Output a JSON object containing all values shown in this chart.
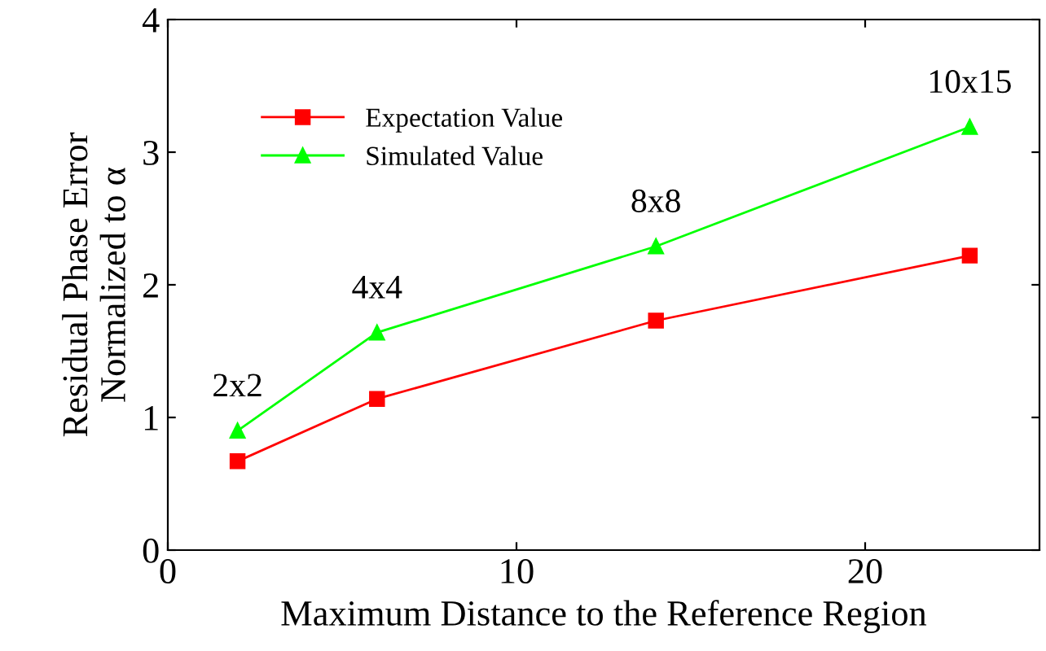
{
  "chart_data": {
    "type": "line",
    "xlabel": "Maximum Distance to the Reference Region",
    "ylabel": "Residual Phase Error\nNormalized to α",
    "x": [
      2,
      6,
      14,
      23
    ],
    "series": [
      {
        "name": "Expectation Value",
        "color": "#ff0000",
        "marker": "square",
        "values": [
          0.67,
          1.14,
          1.73,
          2.22
        ]
      },
      {
        "name": "Simulated Value",
        "color": "#00ff00",
        "marker": "triangle",
        "values": [
          0.9,
          1.64,
          2.29,
          3.19
        ]
      }
    ],
    "annotations": [
      {
        "text": "2x2",
        "x": 2,
        "y": 0.9
      },
      {
        "text": "4x4",
        "x": 6,
        "y": 1.64
      },
      {
        "text": "8x8",
        "x": 14,
        "y": 2.29
      },
      {
        "text": "10x15",
        "x": 23,
        "y": 3.19
      }
    ],
    "xlim": [
      0,
      25
    ],
    "xticks": [
      0,
      10,
      20
    ],
    "ylim": [
      0,
      4
    ],
    "yticks": [
      0,
      1,
      2,
      3,
      4
    ],
    "grid": false,
    "legend": "top left"
  }
}
